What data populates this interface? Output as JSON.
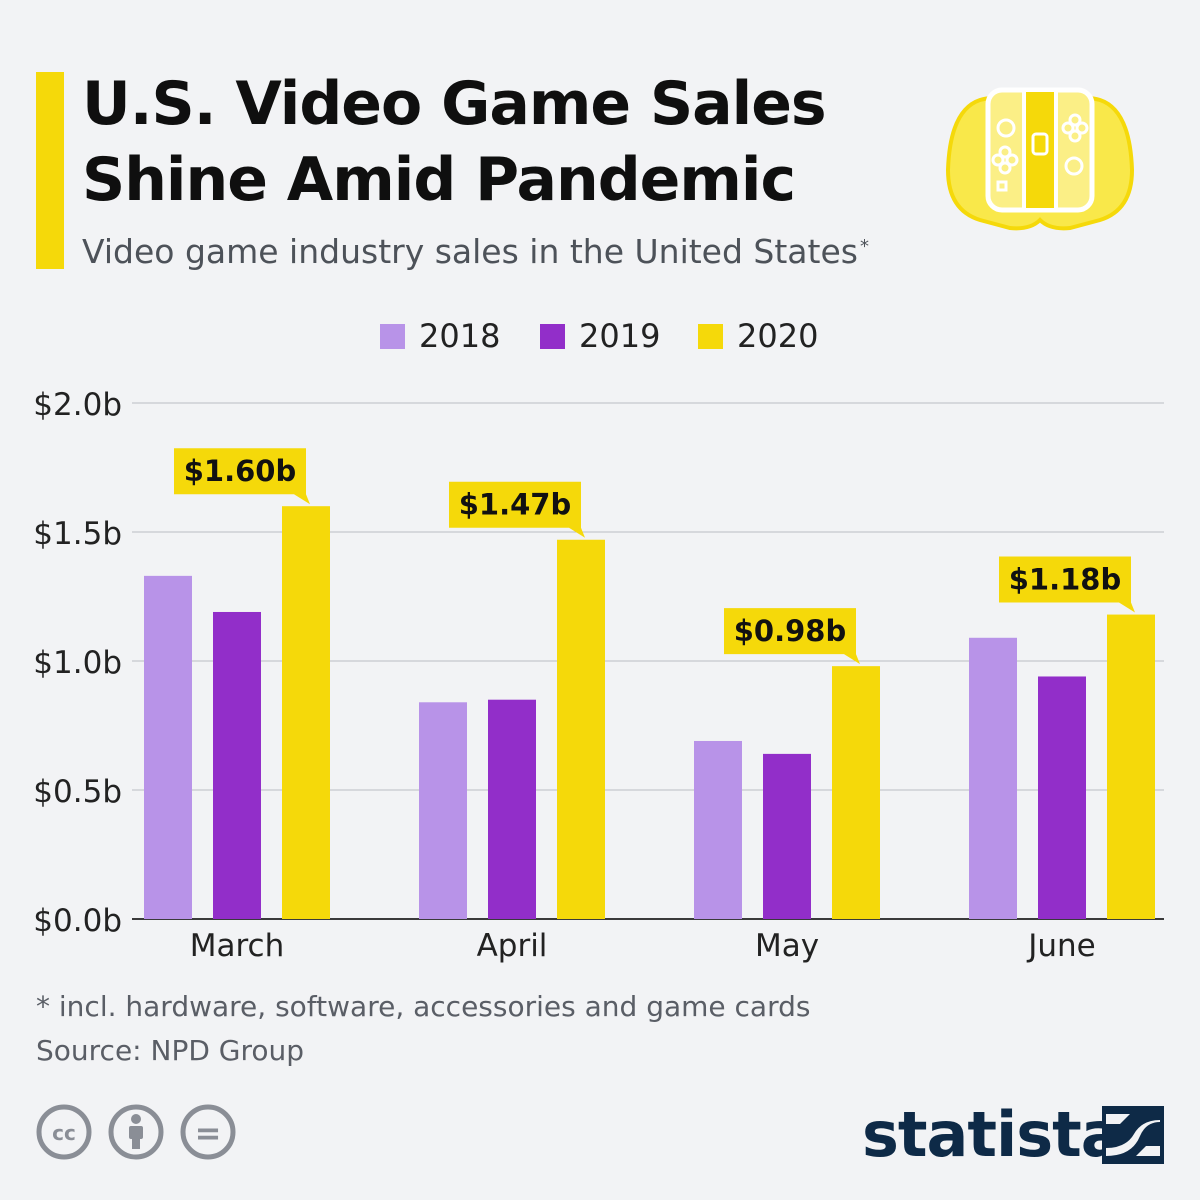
{
  "header": {
    "title_line1": "U.S. Video Game Sales",
    "title_line2": "Shine Amid Pandemic",
    "subtitle": "Video game industry sales in the United States",
    "subtitle_mark": "*"
  },
  "icons": {
    "controller": "game-controller-icon",
    "license": [
      "creative-commons-icon",
      "attribution-icon",
      "no-derivatives-icon"
    ],
    "license_text": [
      "cc",
      "=",
      ""
    ]
  },
  "colors": {
    "series_2018": "#b893e8",
    "series_2019": "#922ec9",
    "series_2020": "#f5d90a",
    "brand": "#0e2a47",
    "accent": "#f5d90a"
  },
  "chart_data": {
    "type": "bar",
    "categories": [
      "March",
      "April",
      "May",
      "June"
    ],
    "series": [
      {
        "name": "2018",
        "values": [
          1.33,
          0.84,
          0.69,
          1.09
        ]
      },
      {
        "name": "2019",
        "values": [
          1.19,
          0.85,
          0.64,
          0.94
        ]
      },
      {
        "name": "2020",
        "values": [
          1.6,
          1.47,
          0.98,
          1.18
        ]
      }
    ],
    "data_labels": [
      "$1.60b",
      "$1.47b",
      "$0.98b",
      "$1.18b"
    ],
    "data_label_series": "2020",
    "ylim": [
      0,
      2.0
    ],
    "yticks": [
      0,
      0.5,
      1.0,
      1.5,
      2.0
    ],
    "ytick_labels": [
      "$0.0b",
      "$0.5b",
      "$1.0b",
      "$1.5b",
      "$2.0b"
    ],
    "grid": true,
    "legend_position": "top-center"
  },
  "footer": {
    "footnote": "* incl. hardware, software, accessories and game cards",
    "source": "Source: NPD Group",
    "brand": "statista"
  }
}
